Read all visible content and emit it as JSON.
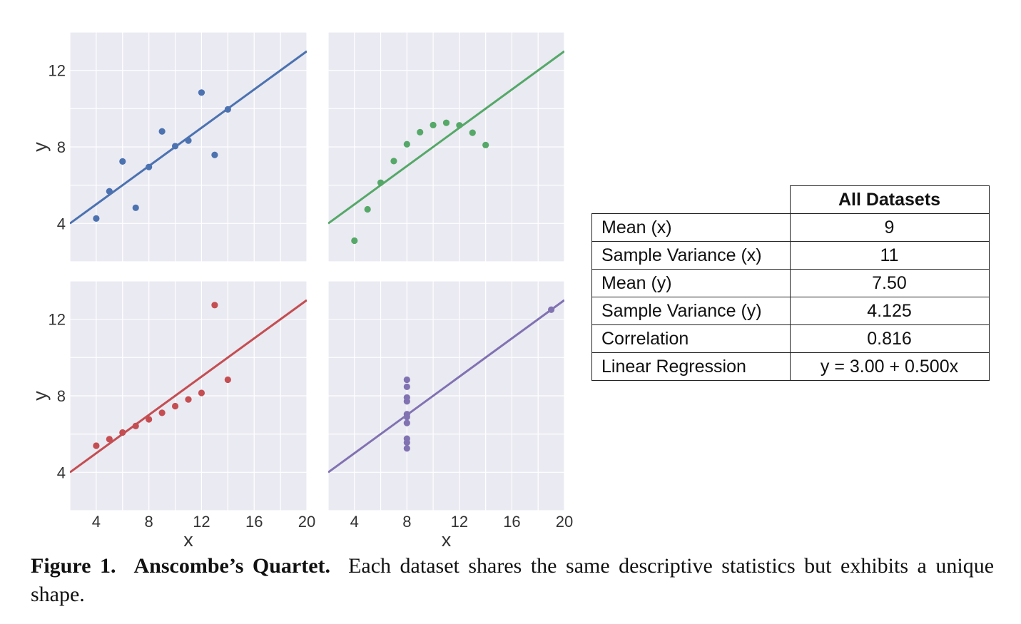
{
  "chart_data": [
    {
      "type": "scatter",
      "panel": "top-left",
      "color": "#4c72b0",
      "x": [
        10,
        8,
        13,
        9,
        11,
        14,
        6,
        4,
        12,
        7,
        5
      ],
      "y": [
        8.04,
        6.95,
        7.58,
        8.81,
        8.33,
        9.96,
        7.24,
        4.26,
        10.84,
        4.82,
        5.68
      ],
      "fit": {
        "intercept": 3.0,
        "slope": 0.5
      },
      "xlim": [
        2,
        20
      ],
      "ylim": [
        2,
        14
      ],
      "xticks": [
        4,
        8,
        12,
        16,
        20
      ],
      "yticks": [
        4,
        8,
        12
      ],
      "xtick_labels": [],
      "ytick_labels": [
        "4",
        "8",
        "12"
      ],
      "xlabel": "",
      "ylabel": "y",
      "grid": true
    },
    {
      "type": "scatter",
      "panel": "top-right",
      "color": "#55a868",
      "x": [
        10,
        8,
        13,
        9,
        11,
        14,
        6,
        4,
        12,
        7,
        5
      ],
      "y": [
        9.14,
        8.14,
        8.74,
        8.77,
        9.26,
        8.1,
        6.13,
        3.1,
        9.13,
        7.26,
        4.74
      ],
      "fit": {
        "intercept": 3.0,
        "slope": 0.5
      },
      "xlim": [
        2,
        20
      ],
      "ylim": [
        2,
        14
      ],
      "xticks": [
        4,
        8,
        12,
        16,
        20
      ],
      "yticks": [
        4,
        8,
        12
      ],
      "xtick_labels": [],
      "ytick_labels": [],
      "xlabel": "",
      "ylabel": "",
      "grid": true
    },
    {
      "type": "scatter",
      "panel": "bottom-left",
      "color": "#c44e52",
      "x": [
        10,
        8,
        13,
        9,
        11,
        14,
        6,
        4,
        12,
        7,
        5
      ],
      "y": [
        7.46,
        6.77,
        12.74,
        7.11,
        7.81,
        8.84,
        6.08,
        5.39,
        8.15,
        6.42,
        5.73
      ],
      "fit": {
        "intercept": 3.0,
        "slope": 0.5
      },
      "xlim": [
        2,
        20
      ],
      "ylim": [
        2,
        14
      ],
      "xticks": [
        4,
        8,
        12,
        16,
        20
      ],
      "yticks": [
        4,
        8,
        12
      ],
      "xtick_labels": [
        "4",
        "8",
        "12",
        "16",
        "20"
      ],
      "ytick_labels": [
        "4",
        "8",
        "12"
      ],
      "xlabel": "x",
      "ylabel": "y",
      "grid": true
    },
    {
      "type": "scatter",
      "panel": "bottom-right",
      "color": "#8172b2",
      "x": [
        8,
        8,
        8,
        8,
        8,
        8,
        8,
        19,
        8,
        8,
        8
      ],
      "y": [
        6.58,
        5.76,
        7.71,
        8.84,
        8.47,
        7.04,
        5.25,
        12.5,
        5.56,
        7.91,
        6.89
      ],
      "fit": {
        "intercept": 3.0,
        "slope": 0.5
      },
      "xlim": [
        2,
        20
      ],
      "ylim": [
        2,
        14
      ],
      "xticks": [
        4,
        8,
        12,
        16,
        20
      ],
      "yticks": [
        4,
        8,
        12
      ],
      "xtick_labels": [
        "4",
        "8",
        "12",
        "16",
        "20"
      ],
      "ytick_labels": [],
      "xlabel": "x",
      "ylabel": "",
      "grid": true
    }
  ],
  "table": {
    "header": "All Datasets",
    "rows": [
      {
        "label": "Mean (x)",
        "value": "9"
      },
      {
        "label": "Sample Variance (x)",
        "value": "11"
      },
      {
        "label": "Mean (y)",
        "value": "7.50"
      },
      {
        "label": "Sample Variance (y)",
        "value": "4.125"
      },
      {
        "label": "Correlation",
        "value": "0.816"
      },
      {
        "label": "Linear Regression",
        "value": "y = 3.00 + 0.500x"
      }
    ]
  },
  "caption": {
    "figure_label": "Figure 1.",
    "title": "Anscombe’s Quartet.",
    "text": "Each dataset shares the same descriptive statistics but exhibits a unique shape."
  }
}
